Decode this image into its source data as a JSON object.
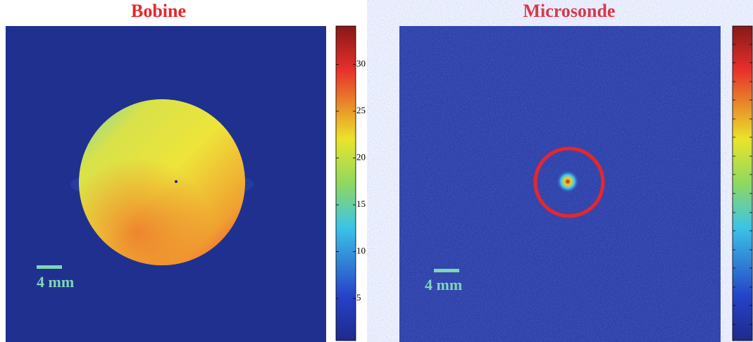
{
  "panels": [
    {
      "title": "Bobine",
      "scale_label": "4 mm",
      "colorbar": {
        "lim": [
          0.5,
          34.1
        ],
        "ticks": [
          5,
          10,
          15,
          20,
          25,
          30
        ]
      }
    },
    {
      "title": "Microsonde",
      "scale_label": "4 mm"
    }
  ]
}
